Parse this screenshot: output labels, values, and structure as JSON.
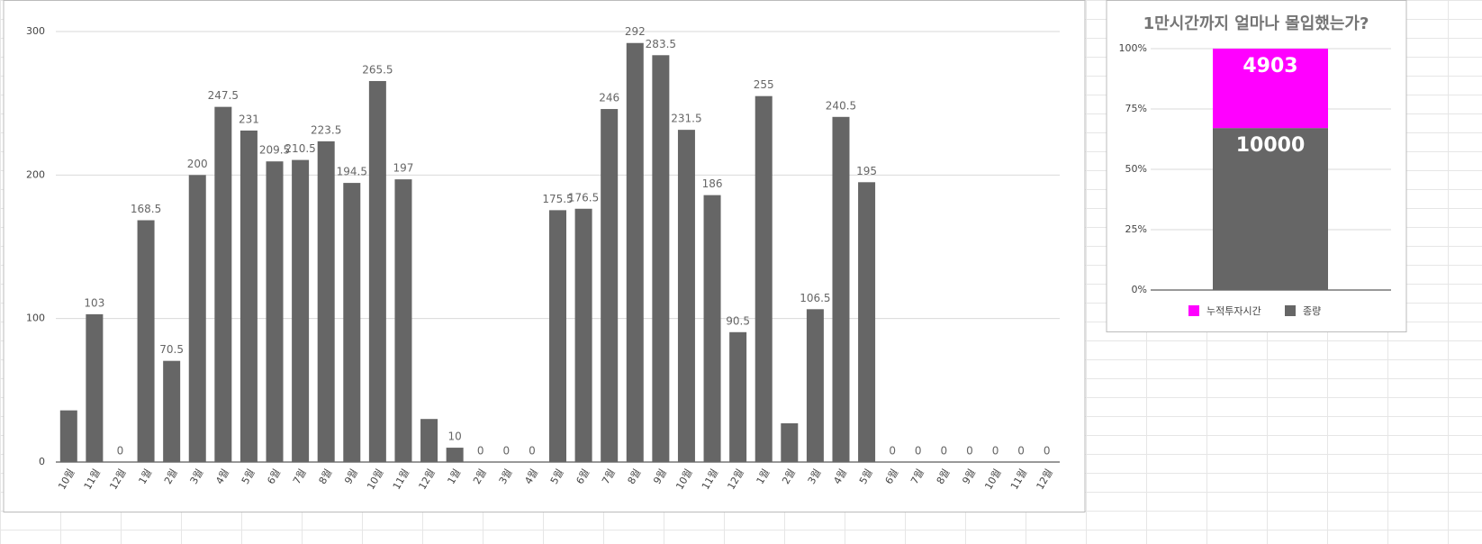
{
  "chart_data": [
    {
      "type": "bar",
      "categories": [
        "10월",
        "11월",
        "12월",
        "1월",
        "2월",
        "3월",
        "4월",
        "5월",
        "6월",
        "7월",
        "8월",
        "9월",
        "10월",
        "11월",
        "12월",
        "1월",
        "2월",
        "3월",
        "4월",
        "5월",
        "6월",
        "7월",
        "8월",
        "9월",
        "10월",
        "11월",
        "12월",
        "1월",
        "2월",
        "3월",
        "4월",
        "5월",
        "6월",
        "7월",
        "8월",
        "9월",
        "10월",
        "11월",
        "12월"
      ],
      "values": [
        36,
        103,
        0,
        168.5,
        70.5,
        200,
        247.5,
        231,
        209.5,
        210.5,
        223.5,
        194.5,
        265.5,
        197,
        30,
        10,
        0,
        0,
        0,
        175.5,
        176.5,
        246,
        292,
        283.5,
        231.5,
        186,
        90.5,
        255,
        27,
        106.5,
        240.5,
        195,
        0,
        0,
        0,
        0,
        0,
        0,
        0
      ],
      "color": "#666666",
      "ylim": [
        0,
        300
      ],
      "yticks": [
        0,
        100,
        200,
        300
      ],
      "grid": true
    },
    {
      "type": "stacked_percent_bar",
      "title": "1만시간까지 얼마나 몰입했는가?",
      "categories": [
        null
      ],
      "series": [
        {
          "name": "누적투자시간",
          "color": "#ff00ff",
          "values": [
            4903
          ]
        },
        {
          "name": "종량",
          "color": "#666666",
          "values": [
            10000
          ]
        }
      ],
      "ylim": [
        0,
        100
      ],
      "yticks": [
        {
          "value": 0,
          "label": "0%"
        },
        {
          "value": 25,
          "label": "25%"
        },
        {
          "value": 50,
          "label": "50%"
        },
        {
          "value": 75,
          "label": "75%"
        },
        {
          "value": 100,
          "label": "100%"
        }
      ],
      "grid": true,
      "legend": "bottom"
    }
  ]
}
